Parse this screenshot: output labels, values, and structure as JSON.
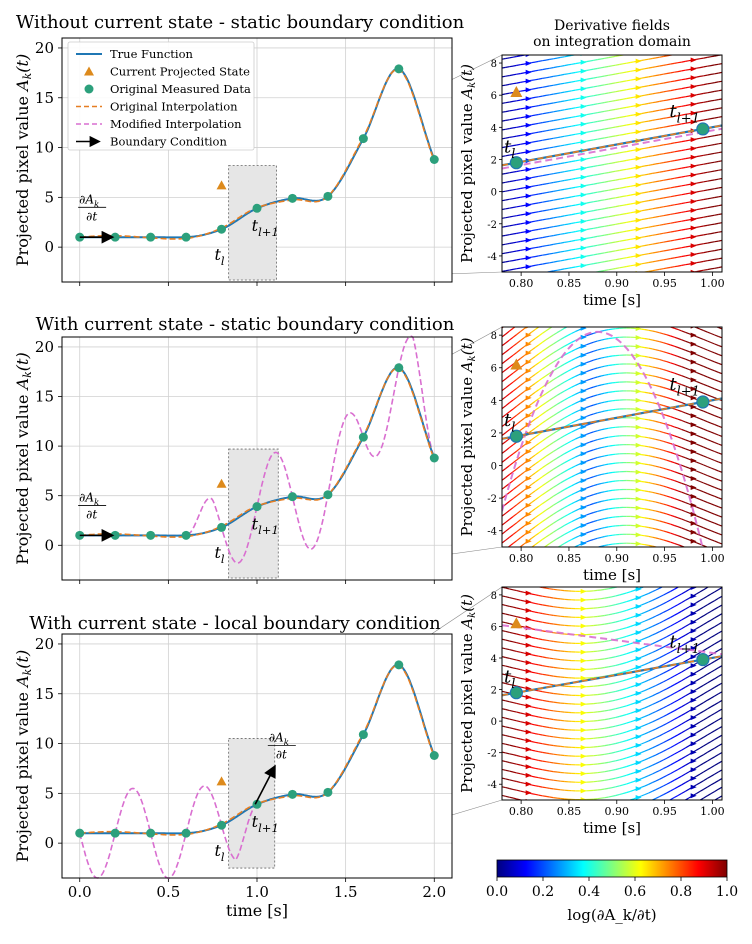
{
  "colorbar": {
    "ticks": [
      "0.0",
      "0.2",
      "0.4",
      "0.6",
      "0.8",
      "1.0"
    ],
    "label": "log(∂A_k/∂t)",
    "colors": [
      "#00007f",
      "#0000ff",
      "#007fff",
      "#00ffff",
      "#7fff7f",
      "#ffff00",
      "#ff7f00",
      "#ff0000",
      "#7f0000"
    ]
  },
  "legend": {
    "entries": [
      {
        "key": "true",
        "label": "True Function",
        "color": "#1f77b4",
        "style": "solid"
      },
      {
        "key": "state",
        "label": "Current Projected State",
        "color": "#dd8a1c",
        "style": "triangle"
      },
      {
        "key": "meas",
        "label": "Original Measured Data",
        "color": "#2ca07c",
        "style": "circle"
      },
      {
        "key": "orig",
        "label": "Original Interpolation",
        "color": "#e67e22",
        "style": "dashed"
      },
      {
        "key": "mod",
        "label": "Modified Interpolation",
        "color": "#d96fd0",
        "style": "dashed"
      },
      {
        "key": "bc",
        "label": "Boundary Condition",
        "color": "#000000",
        "style": "arrow"
      }
    ]
  },
  "chart_data": [
    {
      "type": "line",
      "title": "Without current state - static boundary condition",
      "xlabel": "",
      "ylabel": "Projected pixel value A_k(t)",
      "xlim": [
        -0.1,
        2.1
      ],
      "ylim": [
        -3.5,
        21
      ],
      "xticks": [
        "0.0",
        "0.5",
        "1.0",
        "1.5",
        "2.0"
      ],
      "yticks": [
        "0",
        "5",
        "10",
        "15",
        "20"
      ],
      "show_xticklabels": false,
      "grid": true,
      "legend": "top-left",
      "measured": {
        "x": [
          0.0,
          0.2,
          0.4,
          0.6,
          0.8,
          1.0,
          1.2,
          1.4,
          1.6,
          1.8,
          2.0
        ],
        "y": [
          1.0,
          1.0,
          1.0,
          1.0,
          1.8,
          3.9,
          4.9,
          5.1,
          10.9,
          17.9,
          8.8
        ]
      },
      "current_state": {
        "x": 0.8,
        "y": 6.2
      },
      "annotations": [
        "∂A_k/∂t",
        "t_l",
        "t_l+1"
      ],
      "boundary_arrow": {
        "x0": 0.0,
        "y0": 1.0,
        "x1": 0.2,
        "y1": 1.0
      },
      "zoom_box": {
        "x": [
          0.84,
          1.11
        ],
        "y": [
          -3.3,
          8.2
        ]
      },
      "modified_interpolation": "none"
    },
    {
      "type": "line",
      "title": "With current state - static boundary condition",
      "xlabel": "",
      "ylabel": "Projected pixel value A_k(t)",
      "xlim": [
        -0.1,
        2.1
      ],
      "ylim": [
        -3.5,
        21
      ],
      "xticks": [
        "0.0",
        "0.5",
        "1.0",
        "1.5",
        "2.0"
      ],
      "yticks": [
        "0",
        "5",
        "10",
        "15",
        "20"
      ],
      "show_xticklabels": false,
      "grid": true,
      "measured": {
        "x": [
          0.0,
          0.2,
          0.4,
          0.6,
          0.8,
          1.0,
          1.2,
          1.4,
          1.6,
          1.8,
          2.0
        ],
        "y": [
          1.0,
          1.0,
          1.0,
          1.0,
          1.8,
          3.9,
          4.9,
          5.1,
          10.9,
          17.9,
          8.8
        ]
      },
      "current_state": {
        "x": 0.8,
        "y": 6.2
      },
      "annotations": [
        "∂A_k/∂t",
        "t_l",
        "t_l+1"
      ],
      "boundary_arrow": {
        "x0": 0.0,
        "y0": 1.0,
        "x1": 0.2,
        "y1": 1.0
      },
      "zoom_box": {
        "x": [
          0.84,
          1.12
        ],
        "y": [
          -3.3,
          9.7
        ]
      },
      "modified_interpolation": "oscillating-right"
    },
    {
      "type": "line",
      "title": "With current state - local boundary condition",
      "xlabel": "time [s]",
      "ylabel": "Projected pixel value A_k(t)",
      "xlim": [
        -0.1,
        2.1
      ],
      "ylim": [
        -3.5,
        21
      ],
      "xticks": [
        "0.0",
        "0.5",
        "1.0",
        "1.5",
        "2.0"
      ],
      "yticks": [
        "0",
        "5",
        "10",
        "15",
        "20"
      ],
      "show_xticklabels": true,
      "grid": true,
      "measured": {
        "x": [
          0.0,
          0.2,
          0.4,
          0.6,
          0.8,
          1.0,
          1.2,
          1.4,
          1.6,
          1.8,
          2.0
        ],
        "y": [
          1.0,
          1.0,
          1.0,
          1.0,
          1.8,
          3.9,
          4.9,
          5.1,
          10.9,
          17.9,
          8.8
        ]
      },
      "current_state": {
        "x": 0.8,
        "y": 6.2
      },
      "annotations": [
        "∂A_k/∂t",
        "t_l",
        "t_l+1"
      ],
      "boundary_arrow": {
        "x0": 0.99,
        "y0": 3.9,
        "x1": 1.12,
        "y1": 7.6
      },
      "zoom_box": {
        "x": [
          0.84,
          1.1
        ],
        "y": [
          -2.5,
          10.5
        ]
      },
      "modified_interpolation": "oscillating-left"
    },
    {
      "type": "line",
      "title": "Derivative fields on integration domain",
      "xlabel": "time [s]",
      "ylabel": "Projected pixel value A_k(t)",
      "xlim": [
        0.78,
        1.01
      ],
      "ylim": [
        -5,
        8.5
      ],
      "xticks": [
        "0.80",
        "0.85",
        "0.90",
        "0.95",
        "1.00"
      ],
      "yticks": [
        "-4",
        "-2",
        "0",
        "2",
        "4",
        "6",
        "8"
      ],
      "points": {
        "t_l": [
          0.795,
          1.8
        ],
        "t_l+1": [
          0.99,
          3.9
        ],
        "current_state": [
          0.795,
          6.2
        ]
      },
      "annotations": [
        "t_l",
        "t_l+1"
      ],
      "field": "flat-gradient-left-to-right"
    },
    {
      "type": "line",
      "title": "",
      "xlabel": "time [s]",
      "ylabel": "Projected pixel value A_k(t)",
      "xlim": [
        0.78,
        1.01
      ],
      "ylim": [
        -5,
        8.5
      ],
      "xticks": [
        "0.80",
        "0.85",
        "0.90",
        "0.95",
        "1.00"
      ],
      "yticks": [
        "-4",
        "-2",
        "0",
        "2",
        "4",
        "6",
        "8"
      ],
      "points": {
        "t_l": [
          0.795,
          1.8
        ],
        "t_l+1": [
          0.99,
          3.9
        ],
        "current_state": [
          0.795,
          6.2
        ]
      },
      "annotations": [
        "t_l",
        "t_l+1"
      ],
      "field": "arched-red-edges"
    },
    {
      "type": "line",
      "title": "",
      "xlabel": "time [s]",
      "ylabel": "Projected pixel value A_k(t)",
      "xlim": [
        0.78,
        1.01
      ],
      "ylim": [
        -5,
        8.5
      ],
      "xticks": [
        "0.80",
        "0.85",
        "0.90",
        "0.95",
        "1.00"
      ],
      "yticks": [
        "-4",
        "-2",
        "0",
        "2",
        "4",
        "6",
        "8"
      ],
      "points": {
        "t_l": [
          0.795,
          1.8
        ],
        "t_l+1": [
          0.99,
          3.9
        ],
        "current_state": [
          0.795,
          6.2
        ]
      },
      "annotations": [
        "t_l",
        "t_l+1"
      ],
      "field": "red-left-to-blue-right"
    }
  ]
}
